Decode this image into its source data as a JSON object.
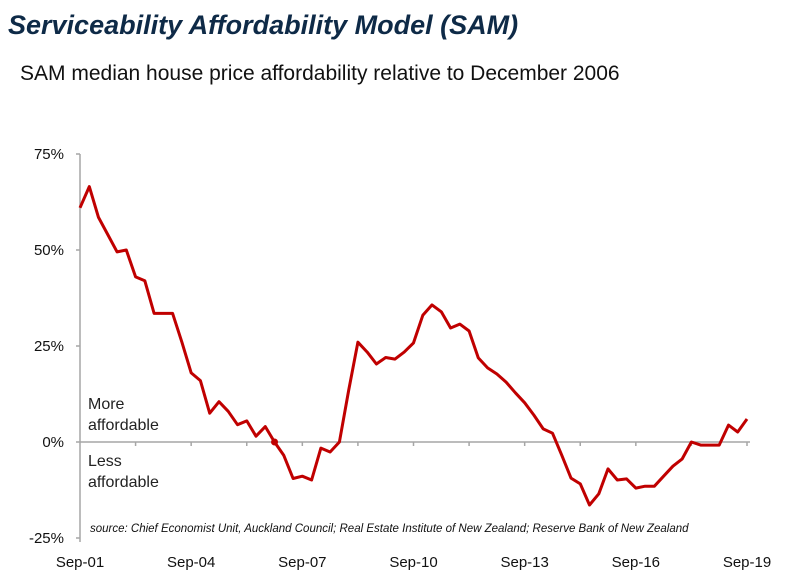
{
  "chart_data": {
    "type": "line",
    "title": "Serviceability Affordability Model (SAM)",
    "subtitle": "SAM median house price affordability relative to December 2006",
    "xlabel": "",
    "ylabel": "",
    "x_start": "Sep-01",
    "x_end": "Sep-19",
    "x_frequency": "quarterly",
    "x_tick_labels": [
      "Sep-01",
      "Sep-04",
      "Sep-07",
      "Sep-10",
      "Sep-13",
      "Sep-16",
      "Sep-19"
    ],
    "y_tick_labels": [
      "75%",
      "50%",
      "25%",
      "0%",
      "-25%"
    ],
    "ylim": [
      -25,
      75
    ],
    "grid": false,
    "series": [
      {
        "name": "SAM affordability",
        "color": "#c00000",
        "values": [
          61,
          66.5,
          58.5,
          54,
          49.5,
          50,
          43,
          42,
          33.5,
          33.5,
          33.5,
          26,
          18,
          16,
          7.5,
          10.5,
          8,
          4.5,
          5.5,
          1.5,
          4,
          0,
          -3.5,
          -9.5,
          -8.9,
          -9.9,
          -1.6,
          -2.6,
          0,
          13.5,
          26,
          23.4,
          20.3,
          22,
          21.6,
          23.4,
          25.8,
          33,
          35.7,
          33.9,
          29.7,
          30.7,
          28.9,
          21.9,
          19.3,
          17.7,
          15.6,
          12.8,
          10.2,
          7,
          3.4,
          2.3,
          -3.4,
          -9.4,
          -10.9,
          -16.4,
          -13.5,
          -7,
          -9.9,
          -9.6,
          -12,
          -11.5,
          -11.5,
          -8.9,
          -6.3,
          -4.4,
          0,
          -0.8,
          -0.8,
          -0.8,
          4.4,
          2.6,
          6
        ]
      }
    ],
    "annotations": {
      "above": [
        "More",
        "affordable"
      ],
      "below": [
        "Less",
        "affordable"
      ]
    },
    "source": "source: Chief Economist Unit, Auckland Council; Real Estate Institute of New Zealand; Reserve Bank of New Zealand"
  }
}
